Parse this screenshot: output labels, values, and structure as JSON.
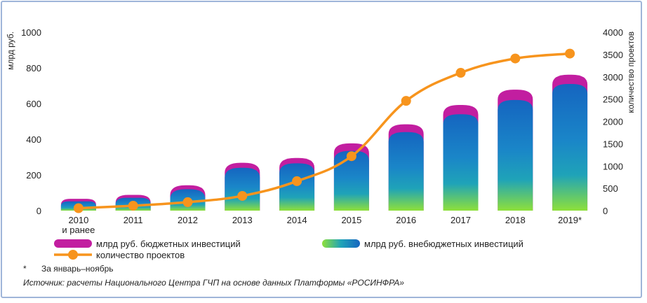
{
  "chart_data": {
    "type": "bar",
    "categories": [
      "2010\nи ранее",
      "2011",
      "2012",
      "2013",
      "2014",
      "2015",
      "2016",
      "2017",
      "2018",
      "2019*"
    ],
    "y_left_label": "млрд руб.",
    "y_right_label": "количество проектов",
    "ylim_left": [
      0,
      1000
    ],
    "yticks_left": [
      "0",
      "200",
      "400",
      "600",
      "800",
      "1000"
    ],
    "ylim_right": [
      0,
      4000
    ],
    "yticks_right": [
      "0",
      "500",
      "1000",
      "1500",
      "2000",
      "2500",
      "3000",
      "3500",
      "4000"
    ],
    "series": [
      {
        "name": "млрд руб. внебюджетных инвестиций",
        "kind": "bar",
        "values": [
          52,
          72,
          120,
          240,
          265,
          335,
          440,
          540,
          620,
          710
        ]
      },
      {
        "name": "млрд руб. бюджетных инвестиций",
        "kind": "bar-stack-top",
        "values": [
          14,
          16,
          22,
          28,
          30,
          42,
          44,
          52,
          58,
          52
        ]
      },
      {
        "name": "количество проектов",
        "kind": "line",
        "axis": "right",
        "values": [
          55,
          110,
          190,
          330,
          660,
          1220,
          2460,
          3090,
          3410,
          3520
        ]
      }
    ],
    "colors": {
      "budget": "#c21ea0",
      "offbudget_top": "#1565c0",
      "offbudget_mid": "#1fa3b8",
      "offbudget_bottom": "#8ee03a",
      "line": "#f7941d"
    },
    "grid": false,
    "legend_position": "bottom"
  },
  "footnote": {
    "mark": "*",
    "text": "За январь–ноябрь"
  },
  "source": "Источник: расчеты Национального Центра ГЧП на основе данных Платформы «РОСИНФРА»"
}
